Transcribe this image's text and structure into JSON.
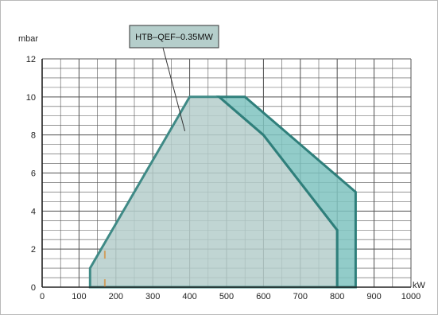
{
  "chart_data": {
    "type": "area",
    "title": "",
    "xlabel": "kW",
    "ylabel": "mbar",
    "xlim": [
      0,
      1000
    ],
    "ylim": [
      0,
      12
    ],
    "x_ticks": [
      0,
      100,
      200,
      300,
      400,
      500,
      600,
      700,
      800,
      900,
      1000
    ],
    "y_ticks": [
      0,
      2,
      4,
      6,
      8,
      10,
      12
    ],
    "x_minor_step": 50,
    "y_minor_step": 0.5,
    "grid": true,
    "legend": {
      "label": "HTB–QEF–0.35MW",
      "placement": "top-left"
    },
    "series": [
      {
        "name": "HTB–QEF–0.35MW",
        "points": [
          [
            130,
            0
          ],
          [
            130,
            1
          ],
          [
            400,
            10
          ],
          [
            480,
            10
          ],
          [
            600,
            8
          ],
          [
            800,
            3
          ],
          [
            800,
            0
          ]
        ],
        "fill": "#b5cecb",
        "stroke": "#3f8a86"
      },
      {
        "points": [
          [
            480,
            10
          ],
          [
            550,
            10
          ],
          [
            850,
            5
          ],
          [
            850,
            0
          ],
          [
            800,
            0
          ],
          [
            800,
            3
          ],
          [
            600,
            8
          ]
        ],
        "fill": "#7fc3bf",
        "stroke": "#2f7f7b"
      }
    ],
    "markers": [
      [
        170,
        0
      ],
      [
        170,
        1.5
      ]
    ],
    "colors": {
      "grid": "#555555",
      "axis": "#222222",
      "marker": "#d0a060"
    }
  }
}
